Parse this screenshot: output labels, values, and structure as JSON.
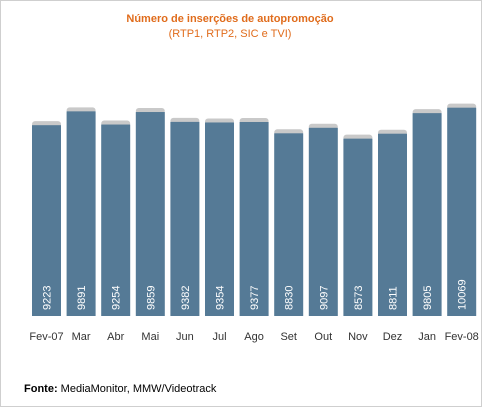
{
  "chart_data": {
    "type": "bar",
    "title": "Número de inserções de autopromoção",
    "subtitle": "(RTP1, RTP2, SIC e TVI)",
    "categories": [
      "Fev-07",
      "Mar",
      "Abr",
      "Mai",
      "Jun",
      "Jul",
      "Ago",
      "Set",
      "Out",
      "Nov",
      "Dez",
      "Jan",
      "Fev-08"
    ],
    "values": [
      9223,
      9891,
      9254,
      9859,
      9382,
      9354,
      9377,
      8830,
      9097,
      8573,
      8811,
      9805,
      10069
    ],
    "ylim": [
      0,
      11600
    ],
    "grid": false,
    "colors": {
      "bar": "#557a96",
      "bar_cap": "#c9c9c9",
      "value_label": "#ffffff",
      "tick_label": "#333333"
    }
  },
  "footer": {
    "source_label": "Fonte:",
    "source_text": "MediaMonitor, MMW/Videotrack"
  }
}
